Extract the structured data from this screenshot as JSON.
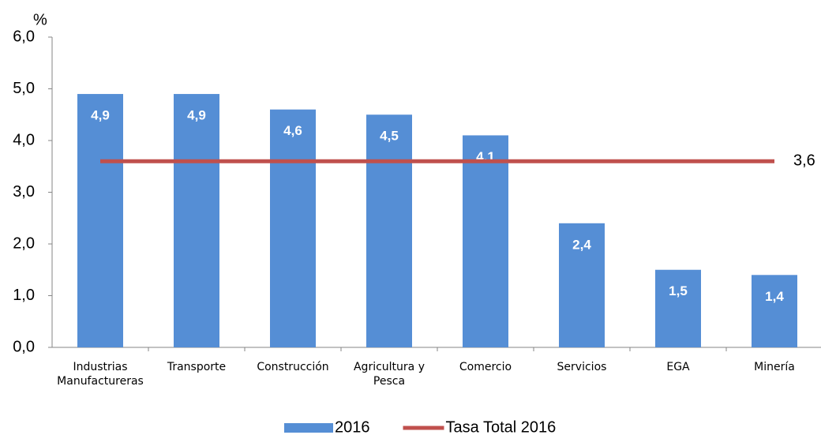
{
  "chart_data": {
    "type": "bar",
    "y_label": "%",
    "categories": [
      "Industrias Manufactureras",
      "Transporte",
      "Construcción",
      "Agricultura y Pesca",
      "Comercio",
      "Servicios",
      "EGA",
      "Minería"
    ],
    "series": [
      {
        "name": "2016",
        "type": "bar",
        "color": "#558ed5",
        "values": [
          4.9,
          4.9,
          4.6,
          4.5,
          4.1,
          2.4,
          1.5,
          1.4
        ],
        "value_labels": [
          "4,9",
          "4,9",
          "4,6",
          "4,5",
          "4,1",
          "2,4",
          "1,5",
          "1,4"
        ]
      },
      {
        "name": "Tasa Total 2016",
        "type": "line",
        "color": "#c0504d",
        "values": [
          3.6,
          3.6,
          3.6,
          3.6,
          3.6,
          3.6,
          3.6,
          3.6
        ],
        "value_labels": [
          null,
          null,
          null,
          null,
          null,
          null,
          null,
          "3,6"
        ]
      }
    ],
    "ylim": [
      0,
      6
    ],
    "yticks": [
      {
        "value": 0,
        "label": "0,0"
      },
      {
        "value": 1,
        "label": "1,0"
      },
      {
        "value": 2,
        "label": "2,0"
      },
      {
        "value": 3,
        "label": "3,0"
      },
      {
        "value": 4,
        "label": "4,0"
      },
      {
        "value": 5,
        "label": "5,0"
      },
      {
        "value": 6,
        "label": "6,0"
      }
    ],
    "grid": false,
    "legend": "bottom"
  }
}
